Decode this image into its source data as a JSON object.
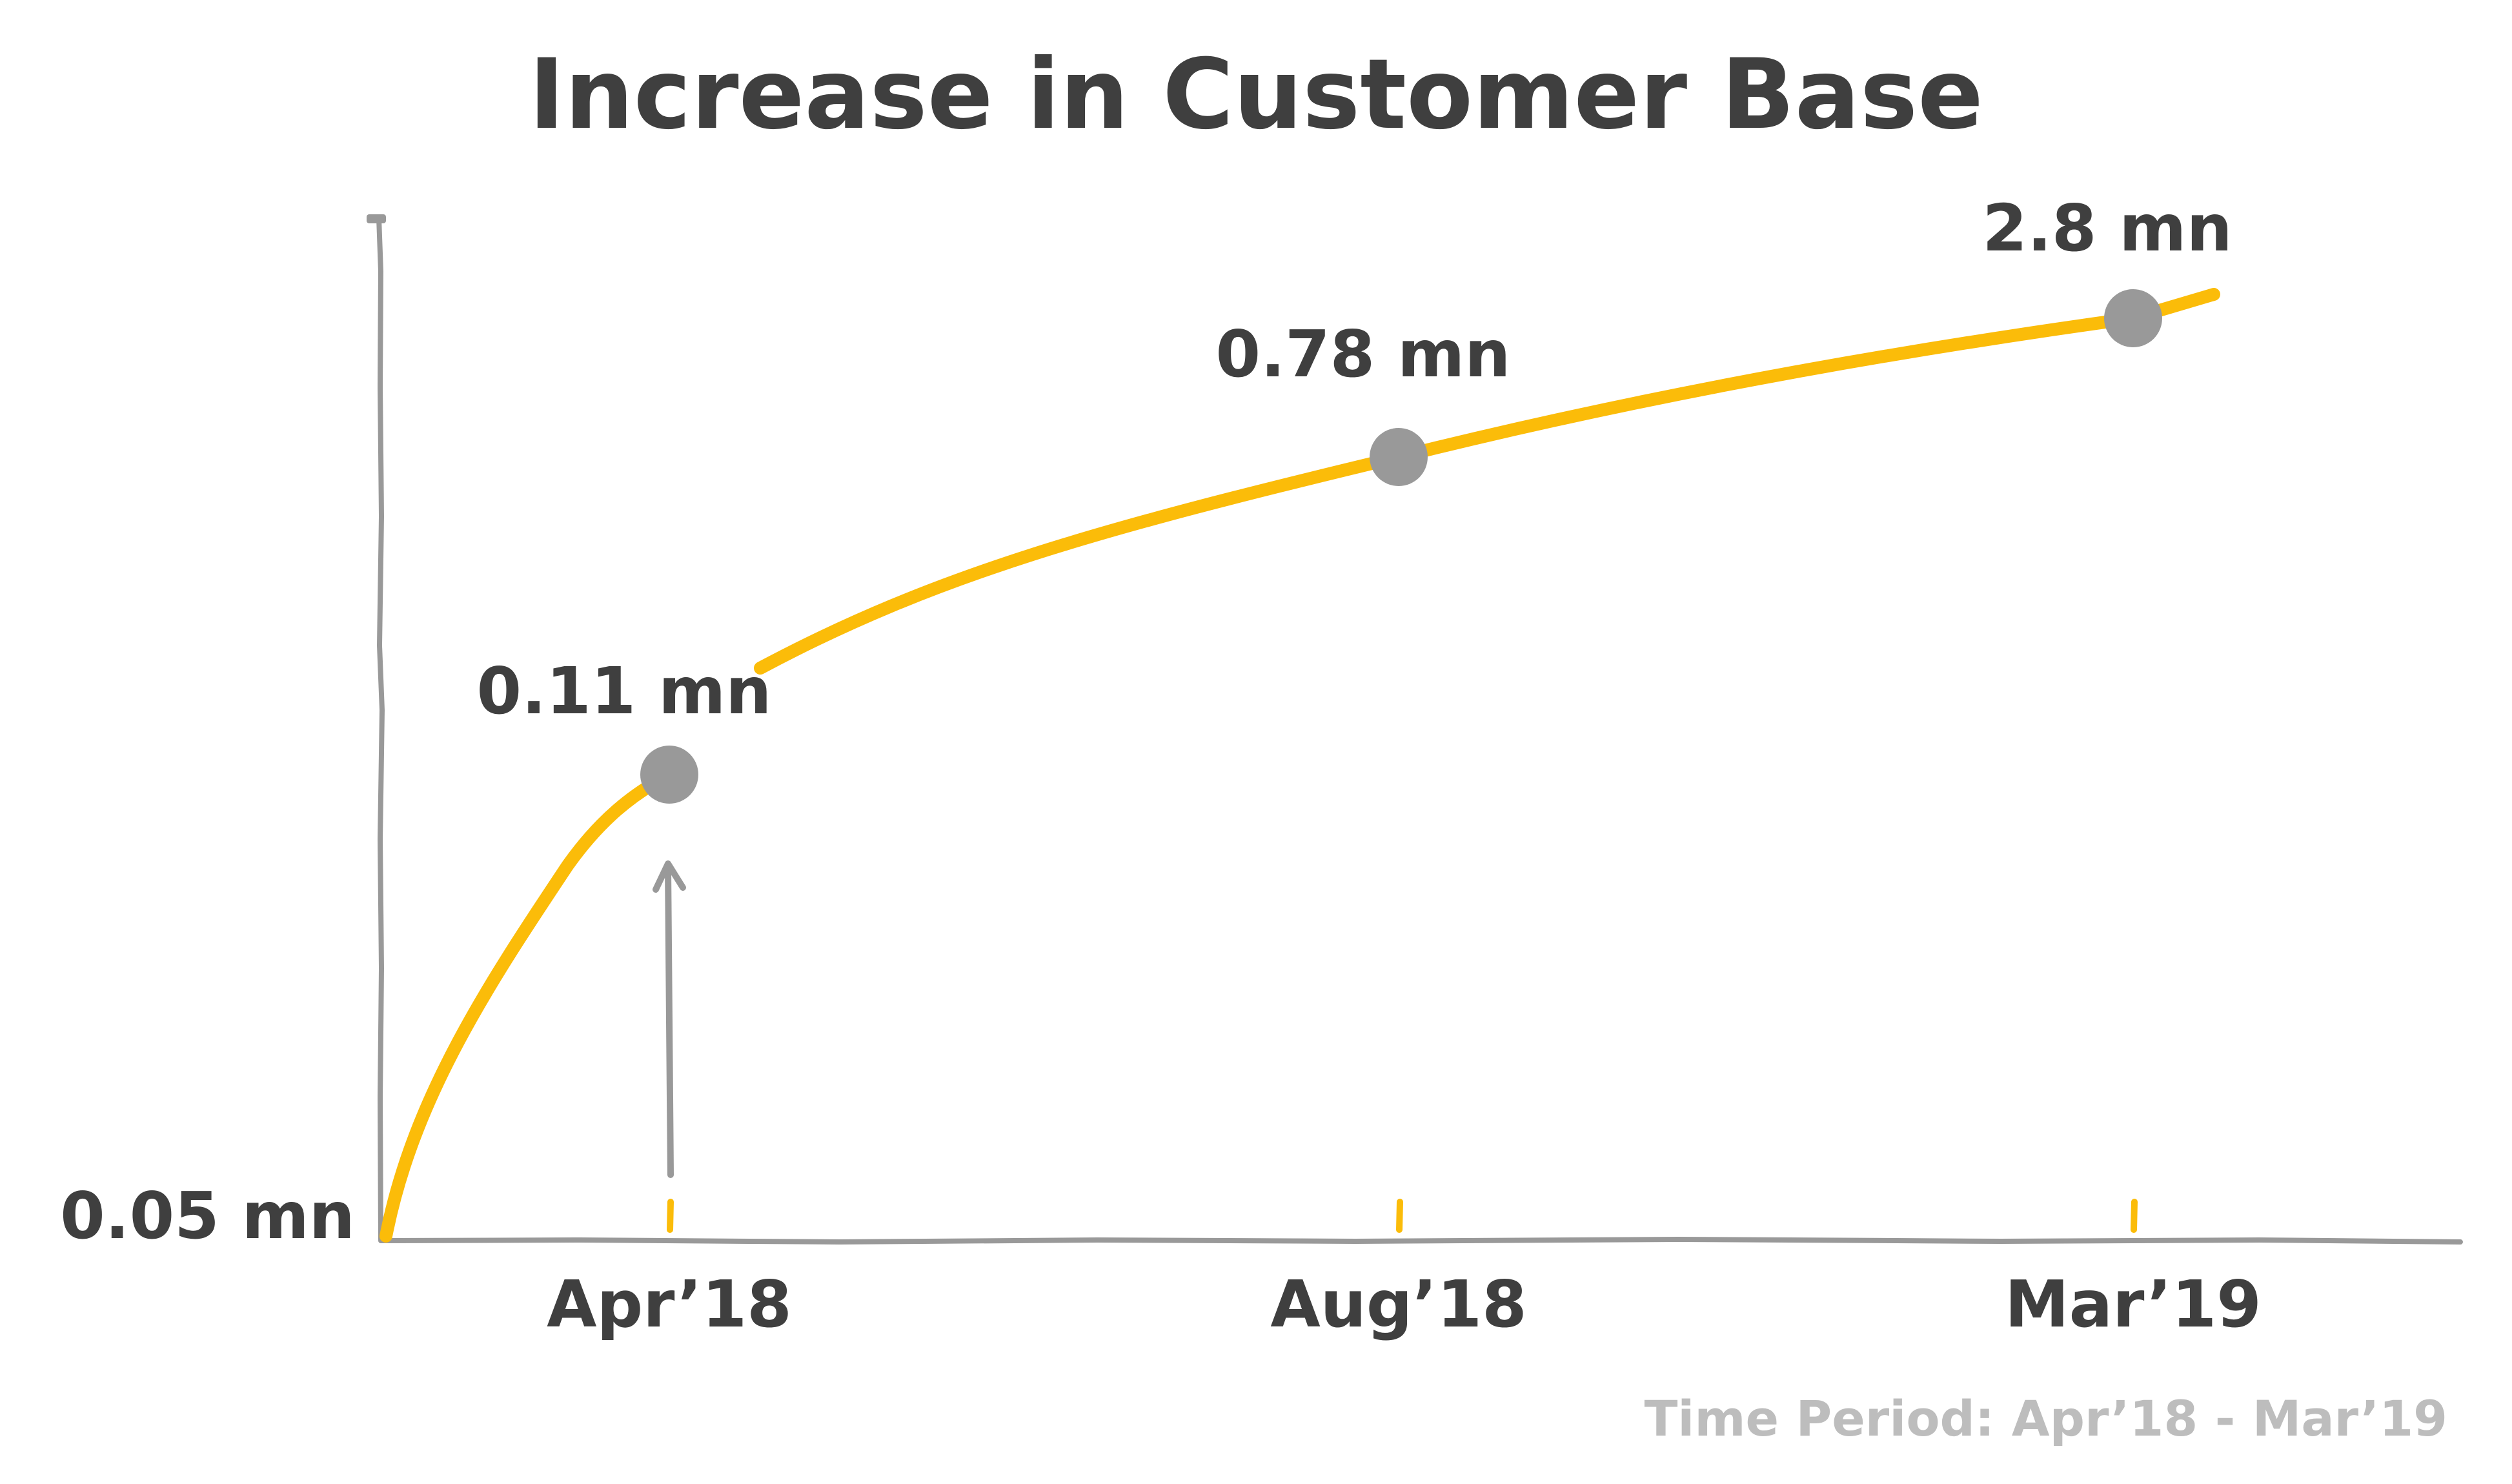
{
  "chart_data": {
    "type": "line",
    "title": "Increase in Customer Base",
    "xlabel": "",
    "ylabel": "",
    "categories": [
      "Apr’18",
      "Aug’18",
      "Mar’19"
    ],
    "y_start_label": "0.05 mn",
    "unit": "mn",
    "series": [
      {
        "points": [
          {
            "x": "Apr’18",
            "y": 0.11,
            "label": "0.11 mn"
          },
          {
            "x": "Aug’18",
            "y": 0.78,
            "label": "0.78 mn"
          },
          {
            "x": "Mar’19",
            "y": 2.8,
            "label": "2.8 mn"
          }
        ]
      }
    ],
    "grid": false,
    "legend": "none",
    "footnote": "Time Period: Apr’18 - Mar’19",
    "colors": {
      "line": "#fbbc09",
      "marker": "#999999",
      "axis": "#999999",
      "text": "#3f3f3f",
      "footnote": "#bdbdbd"
    }
  }
}
